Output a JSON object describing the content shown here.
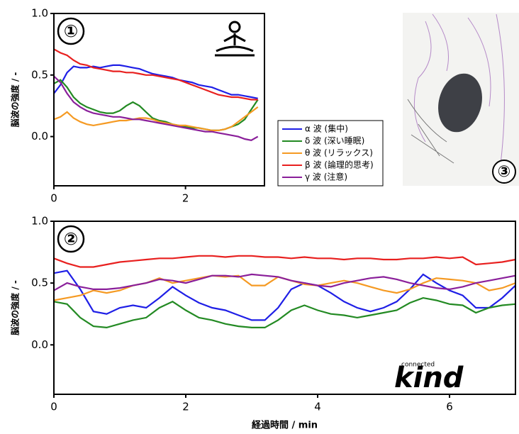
{
  "chart_data": [
    {
      "type": "line",
      "label": "①",
      "y_label": "脳波の強度 / -",
      "xlim": [
        0,
        3.2
      ],
      "ylim": [
        -0.4,
        1.0
      ],
      "xticks": [
        0,
        2
      ],
      "yticks": [
        {
          "value": 0,
          "label": "0.0"
        },
        {
          "value": 0.5,
          "label": "0.5"
        },
        {
          "value": 1,
          "label": "1.0"
        }
      ],
      "legend": "right",
      "x": [
        0,
        0.1,
        0.2,
        0.3,
        0.4,
        0.5,
        0.6,
        0.7,
        0.8,
        0.9,
        1.0,
        1.1,
        1.2,
        1.3,
        1.4,
        1.5,
        1.6,
        1.7,
        1.8,
        1.9,
        2.0,
        2.1,
        2.2,
        2.3,
        2.4,
        2.5,
        2.6,
        2.7,
        2.8,
        2.9,
        3.0,
        3.1
      ],
      "series": [
        {
          "name": "α 波 (集中)",
          "color": "#1f1fe6",
          "values": [
            0.35,
            0.42,
            0.52,
            0.57,
            0.56,
            0.56,
            0.57,
            0.56,
            0.57,
            0.58,
            0.58,
            0.57,
            0.56,
            0.55,
            0.53,
            0.51,
            0.5,
            0.49,
            0.48,
            0.46,
            0.45,
            0.44,
            0.42,
            0.41,
            0.4,
            0.38,
            0.36,
            0.34,
            0.34,
            0.33,
            0.32,
            0.31
          ]
        },
        {
          "name": "δ 波 (深い睡眠)",
          "color": "#238a23",
          "values": [
            0.43,
            0.46,
            0.4,
            0.32,
            0.27,
            0.24,
            0.22,
            0.2,
            0.19,
            0.19,
            0.21,
            0.25,
            0.28,
            0.25,
            0.2,
            0.15,
            0.13,
            0.12,
            0.1,
            0.09,
            0.08,
            0.07,
            0.07,
            0.06,
            0.05,
            0.05,
            0.06,
            0.08,
            0.1,
            0.14,
            0.22,
            0.3
          ]
        },
        {
          "name": "θ 波 (リラックス)",
          "color": "#f59a23",
          "values": [
            0.14,
            0.16,
            0.2,
            0.15,
            0.12,
            0.1,
            0.09,
            0.1,
            0.11,
            0.12,
            0.13,
            0.13,
            0.14,
            0.15,
            0.15,
            0.14,
            0.12,
            0.11,
            0.1,
            0.09,
            0.09,
            0.08,
            0.07,
            0.06,
            0.05,
            0.05,
            0.06,
            0.08,
            0.12,
            0.16,
            0.2,
            0.24
          ]
        },
        {
          "name": "β 波 (論理的思考)",
          "color": "#e8201f",
          "values": [
            0.71,
            0.68,
            0.66,
            0.62,
            0.59,
            0.58,
            0.56,
            0.55,
            0.54,
            0.53,
            0.53,
            0.52,
            0.52,
            0.51,
            0.5,
            0.5,
            0.49,
            0.48,
            0.47,
            0.46,
            0.44,
            0.42,
            0.4,
            0.38,
            0.36,
            0.34,
            0.33,
            0.32,
            0.32,
            0.31,
            0.3,
            0.3
          ]
        },
        {
          "name": "γ 波 (注意)",
          "color": "#8a1f9a",
          "values": [
            0.49,
            0.44,
            0.35,
            0.28,
            0.24,
            0.21,
            0.19,
            0.18,
            0.17,
            0.16,
            0.16,
            0.15,
            0.14,
            0.14,
            0.13,
            0.12,
            0.11,
            0.1,
            0.09,
            0.08,
            0.07,
            0.06,
            0.05,
            0.04,
            0.04,
            0.03,
            0.02,
            0.01,
            0.0,
            -0.02,
            -0.03,
            0.0
          ]
        }
      ]
    },
    {
      "type": "line",
      "label": "②",
      "y_label": "脳波の強度 / -",
      "x_label": "経過時間 / min",
      "xlim": [
        0,
        7
      ],
      "ylim": [
        -0.4,
        1.0
      ],
      "xticks": [
        0,
        2,
        4,
        6
      ],
      "yticks": [
        {
          "value": 0,
          "label": "0.0"
        },
        {
          "value": 0.5,
          "label": "0.5"
        },
        {
          "value": 1,
          "label": "1.0"
        }
      ],
      "x": [
        0,
        0.2,
        0.4,
        0.6,
        0.8,
        1.0,
        1.2,
        1.4,
        1.6,
        1.8,
        2.0,
        2.2,
        2.4,
        2.6,
        2.8,
        3.0,
        3.2,
        3.4,
        3.6,
        3.8,
        4.0,
        4.2,
        4.4,
        4.6,
        4.8,
        5.0,
        5.2,
        5.4,
        5.6,
        5.8,
        6.0,
        6.2,
        6.4,
        6.6,
        6.8,
        7.0
      ],
      "series": [
        {
          "color": "#1f1fe6",
          "values": [
            0.58,
            0.6,
            0.45,
            0.27,
            0.25,
            0.3,
            0.32,
            0.3,
            0.38,
            0.47,
            0.4,
            0.34,
            0.3,
            0.28,
            0.24,
            0.2,
            0.2,
            0.3,
            0.45,
            0.5,
            0.48,
            0.42,
            0.35,
            0.3,
            0.27,
            0.3,
            0.35,
            0.45,
            0.57,
            0.5,
            0.44,
            0.4,
            0.3,
            0.3,
            0.38,
            0.48
          ]
        },
        {
          "color": "#238a23",
          "values": [
            0.35,
            0.33,
            0.22,
            0.15,
            0.14,
            0.17,
            0.2,
            0.22,
            0.3,
            0.35,
            0.28,
            0.22,
            0.2,
            0.17,
            0.15,
            0.14,
            0.14,
            0.2,
            0.28,
            0.32,
            0.28,
            0.25,
            0.24,
            0.22,
            0.24,
            0.26,
            0.28,
            0.34,
            0.38,
            0.36,
            0.33,
            0.32,
            0.26,
            0.3,
            0.32,
            0.33
          ]
        },
        {
          "color": "#f59a23",
          "values": [
            0.36,
            0.38,
            0.4,
            0.44,
            0.42,
            0.44,
            0.48,
            0.5,
            0.54,
            0.5,
            0.52,
            0.54,
            0.56,
            0.55,
            0.56,
            0.48,
            0.48,
            0.55,
            0.52,
            0.49,
            0.48,
            0.5,
            0.52,
            0.5,
            0.47,
            0.44,
            0.42,
            0.45,
            0.5,
            0.54,
            0.53,
            0.52,
            0.5,
            0.44,
            0.46,
            0.5
          ]
        },
        {
          "color": "#e8201f",
          "values": [
            0.7,
            0.66,
            0.63,
            0.63,
            0.65,
            0.67,
            0.68,
            0.69,
            0.7,
            0.7,
            0.71,
            0.72,
            0.72,
            0.71,
            0.72,
            0.72,
            0.71,
            0.71,
            0.7,
            0.71,
            0.7,
            0.7,
            0.69,
            0.7,
            0.7,
            0.69,
            0.69,
            0.7,
            0.7,
            0.71,
            0.7,
            0.71,
            0.65,
            0.66,
            0.67,
            0.69
          ]
        },
        {
          "color": "#8a1f9a",
          "values": [
            0.44,
            0.5,
            0.47,
            0.45,
            0.45,
            0.46,
            0.48,
            0.5,
            0.53,
            0.52,
            0.5,
            0.53,
            0.56,
            0.56,
            0.55,
            0.57,
            0.56,
            0.55,
            0.52,
            0.5,
            0.48,
            0.47,
            0.5,
            0.52,
            0.54,
            0.55,
            0.53,
            0.5,
            0.48,
            0.46,
            0.45,
            0.47,
            0.5,
            0.52,
            0.54,
            0.56
          ]
        }
      ]
    }
  ],
  "photo": {
    "label": "③"
  },
  "logo": {
    "small": "connected",
    "main": "kind"
  }
}
